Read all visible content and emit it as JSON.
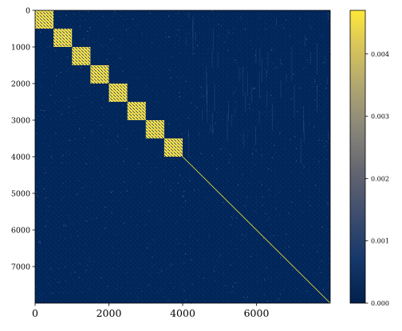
{
  "chart_data": {
    "type": "heatmap",
    "title": "",
    "xlabel": "",
    "ylabel": "",
    "matrix_size": 8000,
    "xlim": [
      0,
      8000
    ],
    "ylim": [
      8000,
      0
    ],
    "x_ticks": [
      0,
      2000,
      4000,
      6000
    ],
    "x_tick_labels": [
      "0",
      "2000",
      "4000",
      "6000"
    ],
    "y_ticks": [
      0,
      1000,
      2000,
      3000,
      4000,
      5000,
      6000,
      7000
    ],
    "y_tick_labels": [
      "0",
      "1000",
      "2000",
      "3000",
      "4000",
      "5000",
      "6000",
      "7000"
    ],
    "blocks": [
      {
        "start": 0,
        "end": 500
      },
      {
        "start": 500,
        "end": 1000
      },
      {
        "start": 1000,
        "end": 1500
      },
      {
        "start": 1500,
        "end": 2000
      },
      {
        "start": 2000,
        "end": 2500
      },
      {
        "start": 2500,
        "end": 3000
      },
      {
        "start": 3000,
        "end": 3500
      },
      {
        "start": 3500,
        "end": 4000
      }
    ],
    "diagonal_range": [
      4000,
      8000
    ],
    "colorbar": {
      "min": 0.0,
      "max": 0.0047,
      "ticks": [
        0.0,
        0.001,
        0.002,
        0.003,
        0.004
      ],
      "tick_labels": [
        "0.000",
        "0.001",
        "0.002",
        "0.003",
        "0.004"
      ],
      "colormap": "cividis"
    },
    "colors": {
      "background": "#00265a",
      "high": "#fee838",
      "mid": "#7c7b78",
      "low": "#00204c"
    }
  }
}
